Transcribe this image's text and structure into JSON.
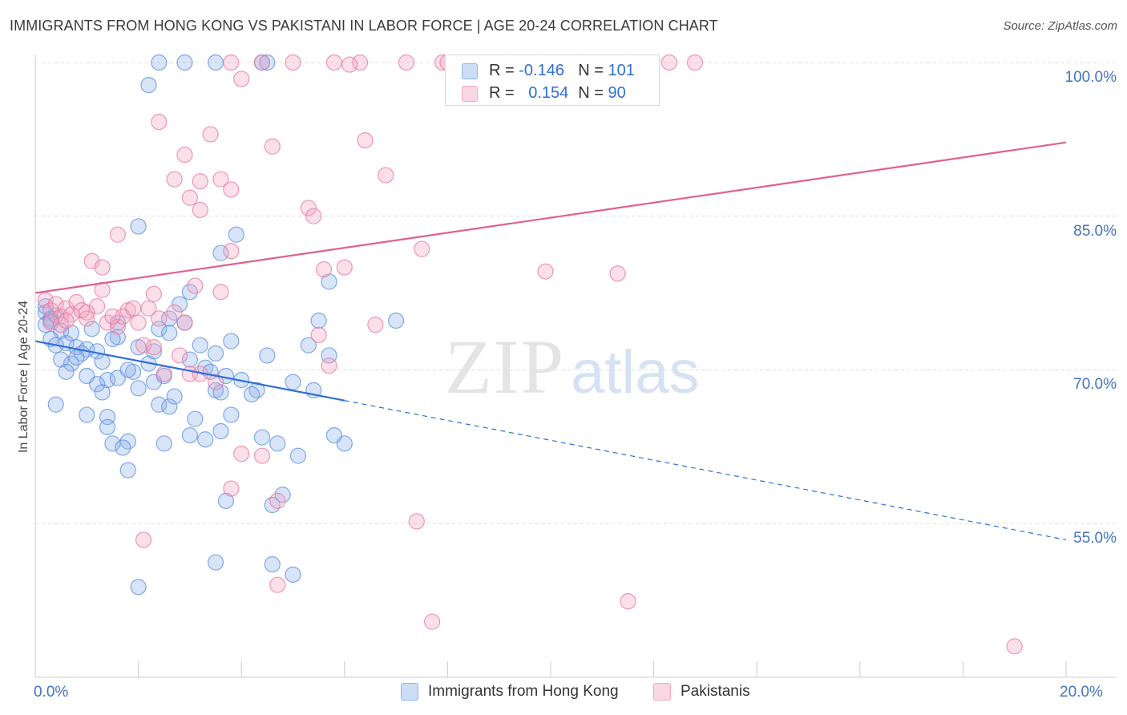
{
  "header": {
    "title": "IMMIGRANTS FROM HONG KONG VS PAKISTANI IN LABOR FORCE | AGE 20-24 CORRELATION CHART",
    "source": "Source: ZipAtlas.com"
  },
  "watermark": {
    "zip": "ZIP",
    "atlas": "atlas"
  },
  "legend": {
    "r_label": "R =",
    "n_label": "N =",
    "rows": [
      {
        "r": "-0.146",
        "n": "101",
        "color": "#8fb3ec"
      },
      {
        "r": "0.154",
        "n": "90",
        "color": "#f4a7c1"
      }
    ]
  },
  "bottom_legend": [
    {
      "label": "Immigrants from Hong Kong",
      "color": "#8fb3ec"
    },
    {
      "label": "Pakistanis",
      "color": "#f4a7c1"
    }
  ],
  "chart_data": {
    "type": "scatter",
    "title": "IMMIGRANTS FROM HONG KONG VS PAKISTANI IN LABOR FORCE | AGE 20-24 CORRELATION CHART",
    "ylabel": "In Labor Force | Age 20-24",
    "xlabel": "",
    "xlim": [
      0,
      20
    ],
    "ylim": [
      40,
      100
    ],
    "x_tick_labels": [
      "0.0%",
      "20.0%"
    ],
    "y_ticks": [
      55,
      70,
      85,
      100
    ],
    "y_tick_labels": [
      "55.0%",
      "70.0%",
      "85.0%",
      "100.0%"
    ],
    "grid": true,
    "series": [
      {
        "name": "Immigrants from Hong Kong",
        "color": "#5b8fe0",
        "fill": "rgba(143,179,236,0.35)",
        "trend": {
          "x0": 0,
          "y0": 72.8,
          "x1": 6,
          "y1": 67.0,
          "dash_to_x": 20,
          "dash_to_y": 53.4,
          "color": "#2f6fd6"
        },
        "points": [
          [
            0.2,
            75.6
          ],
          [
            0.3,
            75.0
          ],
          [
            0.2,
            74.4
          ],
          [
            0.4,
            75.3
          ],
          [
            0.3,
            74.8
          ],
          [
            0.2,
            76.2
          ],
          [
            0.5,
            73.8
          ],
          [
            0.3,
            73.0
          ],
          [
            0.6,
            72.6
          ],
          [
            0.7,
            73.6
          ],
          [
            0.4,
            72.4
          ],
          [
            0.8,
            72.2
          ],
          [
            1.0,
            72.0
          ],
          [
            0.5,
            71.0
          ],
          [
            0.9,
            71.6
          ],
          [
            1.2,
            71.8
          ],
          [
            0.7,
            70.6
          ],
          [
            1.3,
            70.8
          ],
          [
            0.6,
            69.8
          ],
          [
            1.0,
            69.4
          ],
          [
            1.4,
            69.0
          ],
          [
            1.2,
            68.6
          ],
          [
            1.6,
            69.2
          ],
          [
            1.3,
            67.8
          ],
          [
            0.4,
            66.6
          ],
          [
            1.0,
            65.6
          ],
          [
            1.4,
            65.4
          ],
          [
            1.4,
            64.4
          ],
          [
            1.8,
            63.0
          ],
          [
            1.5,
            62.8
          ],
          [
            1.7,
            62.4
          ],
          [
            1.8,
            60.2
          ],
          [
            1.6,
            73.2
          ],
          [
            1.6,
            74.6
          ],
          [
            2.0,
            72.2
          ],
          [
            2.3,
            71.8
          ],
          [
            2.2,
            70.6
          ],
          [
            1.9,
            69.8
          ],
          [
            2.5,
            69.4
          ],
          [
            2.3,
            68.8
          ],
          [
            2.0,
            68.2
          ],
          [
            2.4,
            66.6
          ],
          [
            2.4,
            74.0
          ],
          [
            2.6,
            73.6
          ],
          [
            2.6,
            75.0
          ],
          [
            2.8,
            76.4
          ],
          [
            3.0,
            77.6
          ],
          [
            2.9,
            74.6
          ],
          [
            3.2,
            72.4
          ],
          [
            3.0,
            71.0
          ],
          [
            3.3,
            70.2
          ],
          [
            3.5,
            71.6
          ],
          [
            3.4,
            69.8
          ],
          [
            3.7,
            69.4
          ],
          [
            3.5,
            68.0
          ],
          [
            3.6,
            67.8
          ],
          [
            3.1,
            65.2
          ],
          [
            3.0,
            63.6
          ],
          [
            3.3,
            63.2
          ],
          [
            3.6,
            64.0
          ],
          [
            3.8,
            72.8
          ],
          [
            4.0,
            69.0
          ],
          [
            4.3,
            68.0
          ],
          [
            4.5,
            71.4
          ],
          [
            4.4,
            63.4
          ],
          [
            4.7,
            62.8
          ],
          [
            4.2,
            67.6
          ],
          [
            3.8,
            65.6
          ],
          [
            5.1,
            61.6
          ],
          [
            4.8,
            57.8
          ],
          [
            4.6,
            56.8
          ],
          [
            3.7,
            57.2
          ],
          [
            5.0,
            68.8
          ],
          [
            5.3,
            72.4
          ],
          [
            5.7,
            71.4
          ],
          [
            5.4,
            68.0
          ],
          [
            6.0,
            62.8
          ],
          [
            5.8,
            63.6
          ],
          [
            2.5,
            62.8
          ],
          [
            2.6,
            66.4
          ],
          [
            3.9,
            83.2
          ],
          [
            3.6,
            81.4
          ],
          [
            2.0,
            84.0
          ],
          [
            2.2,
            97.8
          ],
          [
            2.4,
            100.0
          ],
          [
            2.9,
            100.0
          ],
          [
            3.5,
            100.0
          ],
          [
            4.4,
            100.0
          ],
          [
            4.5,
            100.0
          ],
          [
            5.7,
            78.6
          ],
          [
            5.5,
            74.8
          ],
          [
            7.0,
            74.8
          ],
          [
            2.0,
            48.8
          ],
          [
            3.5,
            51.2
          ],
          [
            4.6,
            51.0
          ],
          [
            5.0,
            50.0
          ],
          [
            1.1,
            74.0
          ],
          [
            1.5,
            73.0
          ],
          [
            0.8,
            71.2
          ],
          [
            1.8,
            70.0
          ],
          [
            2.7,
            67.4
          ]
        ]
      },
      {
        "name": "Pakistanis",
        "color": "#e8779f",
        "fill": "rgba(244,167,193,0.35)",
        "trend": {
          "x0": 0,
          "y0": 77.5,
          "x1": 20,
          "y1": 92.2,
          "color": "#e0608f"
        },
        "points": [
          [
            0.2,
            76.8
          ],
          [
            0.3,
            75.8
          ],
          [
            0.4,
            76.4
          ],
          [
            0.5,
            75.2
          ],
          [
            0.6,
            76.0
          ],
          [
            0.7,
            75.4
          ],
          [
            0.3,
            74.6
          ],
          [
            0.8,
            76.6
          ],
          [
            0.9,
            75.8
          ],
          [
            1.0,
            75.0
          ],
          [
            0.5,
            74.4
          ],
          [
            1.2,
            76.2
          ],
          [
            1.3,
            77.8
          ],
          [
            1.1,
            80.6
          ],
          [
            1.3,
            80.0
          ],
          [
            1.6,
            83.2
          ],
          [
            1.4,
            74.6
          ],
          [
            1.6,
            74.2
          ],
          [
            1.8,
            75.8
          ],
          [
            1.7,
            75.2
          ],
          [
            2.0,
            74.6
          ],
          [
            1.9,
            76.0
          ],
          [
            2.1,
            72.4
          ],
          [
            2.3,
            72.2
          ],
          [
            2.4,
            75.0
          ],
          [
            2.5,
            69.6
          ],
          [
            2.7,
            75.6
          ],
          [
            2.8,
            71.4
          ],
          [
            2.9,
            74.6
          ],
          [
            3.0,
            69.6
          ],
          [
            3.1,
            78.2
          ],
          [
            3.2,
            69.6
          ],
          [
            3.0,
            86.8
          ],
          [
            3.2,
            88.4
          ],
          [
            2.9,
            91.0
          ],
          [
            3.4,
            93.0
          ],
          [
            3.6,
            88.6
          ],
          [
            3.8,
            87.6
          ],
          [
            3.8,
            81.6
          ],
          [
            3.2,
            85.6
          ],
          [
            2.4,
            94.2
          ],
          [
            2.7,
            88.6
          ],
          [
            2.3,
            77.4
          ],
          [
            3.6,
            77.6
          ],
          [
            4.0,
            61.8
          ],
          [
            3.8,
            58.4
          ],
          [
            4.4,
            61.6
          ],
          [
            3.5,
            68.8
          ],
          [
            3.8,
            100.0
          ],
          [
            4.0,
            98.4
          ],
          [
            4.4,
            100.0
          ],
          [
            4.6,
            91.8
          ],
          [
            5.0,
            100.0
          ],
          [
            5.3,
            85.8
          ],
          [
            5.4,
            85.0
          ],
          [
            5.8,
            100.0
          ],
          [
            5.6,
            79.8
          ],
          [
            6.0,
            80.0
          ],
          [
            6.4,
            92.4
          ],
          [
            6.6,
            74.4
          ],
          [
            6.8,
            89.0
          ],
          [
            5.5,
            73.4
          ],
          [
            5.7,
            70.4
          ],
          [
            7.5,
            81.8
          ],
          [
            6.3,
            100.0
          ],
          [
            7.9,
            100.0
          ],
          [
            8.5,
            100.0
          ],
          [
            9.2,
            100.0
          ],
          [
            9.8,
            100.0
          ],
          [
            10.6,
            100.0
          ],
          [
            11.5,
            100.0
          ],
          [
            12.3,
            100.0
          ],
          [
            10.4,
            100.0
          ],
          [
            7.2,
            100.0
          ],
          [
            8.0,
            100.0
          ],
          [
            11.3,
            79.4
          ],
          [
            9.9,
            79.6
          ],
          [
            7.4,
            55.2
          ],
          [
            7.7,
            45.4
          ],
          [
            11.5,
            47.4
          ],
          [
            19.0,
            43.0
          ],
          [
            2.1,
            53.4
          ],
          [
            4.7,
            57.2
          ],
          [
            4.7,
            49.0
          ],
          [
            1.0,
            75.6
          ],
          [
            0.6,
            74.8
          ],
          [
            1.5,
            75.2
          ],
          [
            2.2,
            76.0
          ],
          [
            6.1,
            99.8
          ],
          [
            12.8,
            100.0
          ]
        ]
      }
    ]
  }
}
